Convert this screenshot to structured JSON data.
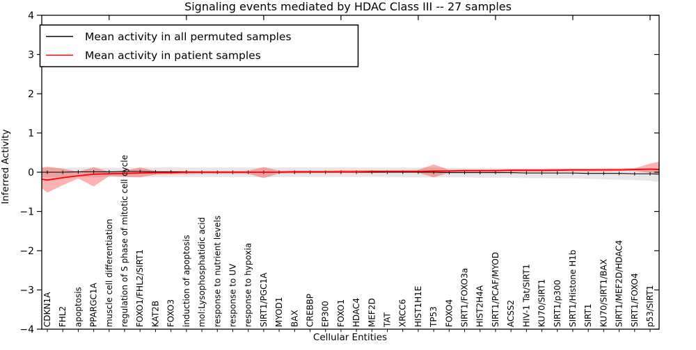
{
  "title": "Signaling events mediated by HDAC Class III -- 27 samples",
  "x_axis": {
    "label": "Cellular Entities"
  },
  "y_axis": {
    "label": "Inferred Activity"
  },
  "legend": {
    "items": [
      {
        "label": "Mean activity in all permuted samples",
        "color": "#000000"
      },
      {
        "label": "Mean activity in patient samples",
        "color": "#ff0000"
      }
    ]
  },
  "chart_data": {
    "type": "line",
    "title": "Signaling events mediated by HDAC Class III -- 27 samples",
    "xlabel": "Cellular Entities",
    "ylabel": "Inferred Activity",
    "ylim": [
      -4,
      4
    ],
    "yticks": [
      4,
      3,
      2,
      1,
      0,
      -1,
      -2,
      -3,
      -4
    ],
    "grid": false,
    "legend_position": "upper left",
    "top_axis_tick_indices": [
      4,
      9,
      14,
      19,
      24,
      29,
      34,
      39
    ],
    "categories": [
      "CDKN1A",
      "FHL2",
      "apoptosis",
      "PPARGC1A",
      "muscle cell differentiation",
      "regulation of S phase of mitotic cell cycle",
      "FOXO1/FHL2/SIRT1",
      "KAT2B",
      "FOXO3",
      "induction of apoptosis",
      "mol:Lysophosphatidic acid",
      "response to nutrient levels",
      "response to UV",
      "response to hypoxia",
      "SIRT1/PGC1A",
      "MYOD1",
      "BAX",
      "CREBBP",
      "EP300",
      "FOXO1",
      "HDAC4",
      "MEF2D",
      "TAT",
      "XRCC6",
      "HIST1H1E",
      "TP53",
      "FOXO4",
      "SIRT1/FOXO3a",
      "HIST2H4A",
      "SIRT1/PCAF/MYOD",
      "ACSS2",
      "HIV-1 Tat/SIRT1",
      "KU70/SIRT1",
      "SIRT1/p300",
      "SIRT1/Histone H1b",
      "SIRT1",
      "KU70/SIRT1/BAX",
      "SIRT1/MEF2D/HDAC4",
      "SIRT1/FOXO4",
      "p53/SIRT1"
    ],
    "series": [
      {
        "name": "Mean activity in all permuted samples",
        "color": "#000000",
        "style": "solid-with-plus-markers",
        "values": [
          0.0,
          0.0,
          0.01,
          0.01,
          0.01,
          0.02,
          0.02,
          0.01,
          0.01,
          0.01,
          0.0,
          0.0,
          0.0,
          0.0,
          0.0,
          0.0,
          0.0,
          0.0,
          0.0,
          0.0,
          0.0,
          0.0,
          0.0,
          0.0,
          0.0,
          0.0,
          -0.01,
          -0.01,
          -0.01,
          -0.01,
          -0.01,
          -0.02,
          -0.02,
          -0.02,
          -0.02,
          -0.03,
          -0.03,
          -0.03,
          -0.04,
          -0.04
        ]
      },
      {
        "name": "Mean activity in patient samples",
        "color": "#ff0000",
        "style": "solid",
        "values": [
          -0.2,
          -0.14,
          -0.09,
          -0.05,
          -0.04,
          -0.03,
          -0.02,
          -0.01,
          -0.01,
          0.0,
          0.0,
          0.0,
          0.0,
          0.0,
          0.0,
          0.0,
          0.01,
          0.01,
          0.01,
          0.01,
          0.01,
          0.02,
          0.02,
          0.02,
          0.02,
          0.03,
          0.03,
          0.04,
          0.04,
          0.04,
          0.05,
          0.05,
          0.05,
          0.05,
          0.06,
          0.06,
          0.06,
          0.06,
          0.07,
          0.08
        ]
      }
    ],
    "bands": [
      {
        "name": "permuted samples range",
        "color": "#aaaaaa",
        "opacity": 0.28,
        "upper": [
          0.12,
          0.11,
          0.12,
          0.12,
          0.11,
          0.12,
          0.12,
          0.12,
          0.13,
          0.12,
          0.12,
          0.12,
          0.12,
          0.12,
          0.12,
          0.12,
          0.12,
          0.12,
          0.12,
          0.13,
          0.12,
          0.12,
          0.12,
          0.12,
          0.12,
          0.12,
          0.11,
          0.11,
          0.11,
          0.11,
          0.1,
          0.1,
          0.1,
          0.09,
          0.09,
          0.08,
          0.08,
          0.07,
          0.07,
          0.06
        ],
        "lower": [
          -0.13,
          -0.12,
          -0.12,
          -0.13,
          -0.12,
          -0.12,
          -0.12,
          -0.12,
          -0.12,
          -0.12,
          -0.12,
          -0.12,
          -0.12,
          -0.12,
          -0.13,
          -0.12,
          -0.12,
          -0.12,
          -0.12,
          -0.12,
          -0.12,
          -0.12,
          -0.12,
          -0.13,
          -0.13,
          -0.13,
          -0.13,
          -0.13,
          -0.14,
          -0.14,
          -0.14,
          -0.15,
          -0.15,
          -0.16,
          -0.16,
          -0.17,
          -0.18,
          -0.19,
          -0.2,
          -0.22
        ]
      },
      {
        "name": "patient samples range",
        "color": "#ff0000",
        "opacity": 0.3,
        "upper": [
          0.14,
          0.09,
          0.01,
          0.13,
          0.01,
          0.04,
          0.12,
          0.03,
          0.03,
          0.03,
          0.03,
          0.03,
          0.03,
          0.04,
          0.13,
          0.04,
          0.04,
          0.04,
          0.04,
          0.05,
          0.05,
          0.05,
          0.05,
          0.05,
          0.06,
          0.2,
          0.06,
          0.07,
          0.07,
          0.07,
          0.08,
          0.08,
          0.08,
          0.09,
          0.09,
          0.09,
          0.1,
          0.1,
          0.1,
          0.22
        ],
        "lower": [
          -0.52,
          -0.33,
          -0.16,
          -0.36,
          -0.1,
          -0.12,
          -0.13,
          -0.06,
          -0.05,
          -0.05,
          -0.04,
          -0.04,
          -0.04,
          -0.04,
          -0.15,
          -0.03,
          -0.03,
          -0.02,
          -0.02,
          -0.02,
          -0.02,
          -0.02,
          -0.01,
          -0.01,
          -0.01,
          -0.13,
          -0.01,
          0.0,
          0.0,
          0.0,
          0.01,
          0.01,
          0.01,
          0.02,
          0.02,
          0.02,
          0.02,
          0.03,
          0.03,
          -0.02
        ]
      }
    ],
    "edges": {
      "left": {
        "permuted_mean": 0.0,
        "patient_mean": -0.18,
        "permuted_band": [
          0.12,
          -0.12
        ],
        "patient_band": [
          0.11,
          -0.41
        ]
      },
      "right": {
        "permuted_mean": -0.05,
        "patient_mean": 0.07,
        "permuted_band": [
          0.07,
          -0.25
        ],
        "patient_band": [
          0.27,
          -0.03
        ]
      }
    }
  }
}
